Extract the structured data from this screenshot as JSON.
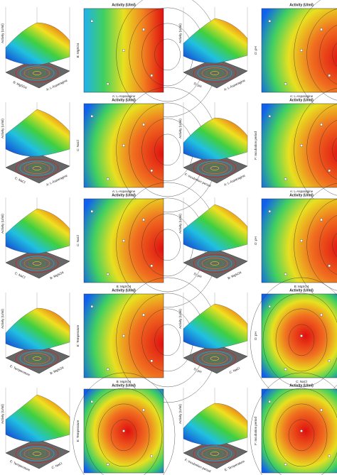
{
  "panels": [
    {
      "z_label": "Activity (U/ml)",
      "title": "Activity (U/ml)",
      "x_label": "A: L-Asparagine",
      "y_label": "B: MgSO4"
    },
    {
      "z_label": "Activity (U/ml)",
      "title": "Activity (U/ml)",
      "x_label": "A: L-Asparagine",
      "y_label": "D: pH"
    },
    {
      "z_label": "Activity (U/ml)",
      "title": "Activity (U/ml)",
      "x_label": "A: L-Asparagine",
      "y_label": "C: NaCl"
    },
    {
      "z_label": "Activity (U/ml)",
      "title": "Activity (U/ml)",
      "x_label": "A: L-Asparagine",
      "y_label": "F: Incubation period"
    },
    {
      "z_label": "Activity (U/ml)",
      "title": "Activity (U/ml)",
      "x_label": "B: MgSO4",
      "y_label": "C: NaCl"
    },
    {
      "z_label": "Activity (U/ml)",
      "title": "Activity (U/ml)",
      "x_label": "B: MgSO4",
      "y_label": "D: pH"
    },
    {
      "z_label": "Activity (U/ml)",
      "title": "Activity (U/ml)",
      "x_label": "B: MgSO4",
      "y_label": "E: Temperature"
    },
    {
      "z_label": "Activity (U/ml)",
      "title": "Activity (U/ml)",
      "x_label": "C: NaCl",
      "y_label": "D: pH"
    },
    {
      "z_label": "Activity (U/ml)",
      "title": "Activity (U/ml)",
      "x_label": "C: NaCl",
      "y_label": "E: Temperature"
    },
    {
      "z_label": "Activity (U/ml)",
      "title": "Activity (U/ml)",
      "x_label": "E: Temperature",
      "y_label": "F: Incubation period"
    }
  ]
}
